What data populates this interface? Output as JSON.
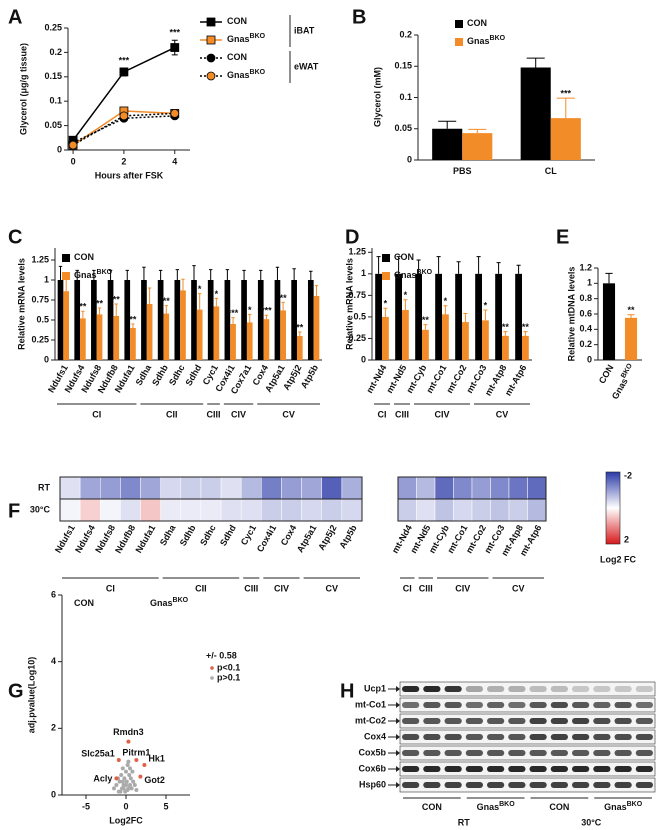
{
  "chart_data": [
    {
      "type": "line",
      "label": "A",
      "x_label": "Hours after FSK",
      "y_label": "Glycerol (μg/g tissue)",
      "x": [
        0,
        2,
        4
      ],
      "xlim": [
        -0.2,
        4.6
      ],
      "xticks": [
        0,
        2,
        4
      ],
      "ylim": [
        0,
        0.25
      ],
      "yticks": [
        0,
        0.05,
        0.1,
        0.15,
        0.2,
        0.25
      ],
      "legend_groups": [
        "iBAT",
        "eWAT"
      ],
      "series": [
        {
          "name": "CON",
          "color": "#000000",
          "line_color": "#000000",
          "marker": "square",
          "dashed": false,
          "values": [
            0.02,
            0.16,
            0.21
          ],
          "errors": [
            0.005,
            0.008,
            0.015
          ],
          "significance": [
            null,
            "***",
            "***"
          ]
        },
        {
          "name": "Gnas",
          "superscript": "BKO",
          "color": "#f28c28",
          "line_color": "#f28c28",
          "marker": "square",
          "dashed": false,
          "values": [
            0.01,
            0.08,
            0.075
          ],
          "errors": [
            0.003,
            0.005,
            0.005
          ]
        },
        {
          "name": "CON",
          "color": "#000000",
          "line_color": "#000000",
          "marker": "circle",
          "dashed": true,
          "values": [
            0.015,
            0.065,
            0.07
          ],
          "errors": [
            0.003,
            0.004,
            0.004
          ]
        },
        {
          "name": "Gnas",
          "superscript": "BKO",
          "color": "#f28c28",
          "line_color": "#000000",
          "marker": "circle",
          "dashed": true,
          "values": [
            0.01,
            0.07,
            0.075
          ],
          "errors": [
            0.003,
            0.004,
            0.004
          ]
        }
      ]
    },
    {
      "type": "bar",
      "label": "B",
      "y_label": "Glycerol (mM)",
      "categories": [
        "PBS",
        "CL"
      ],
      "ylim": [
        0,
        0.2
      ],
      "yticks": [
        0,
        0.05,
        0.1,
        0.15,
        0.2
      ],
      "series": [
        {
          "name": "CON",
          "color": "#000000",
          "values": [
            0.05,
            0.148
          ],
          "errors": [
            0.012,
            0.015
          ]
        },
        {
          "name": "Gnas",
          "superscript": "BKO",
          "color": "#f28c28",
          "values": [
            0.043,
            0.067
          ],
          "errors": [
            0.006,
            0.032
          ],
          "significance": [
            null,
            "***"
          ]
        }
      ]
    },
    {
      "type": "bar",
      "label": "C",
      "y_label": "Relative mRNA levels",
      "categories": [
        "Ndufs1",
        "Ndufs4",
        "Ndufs8",
        "Ndufb8",
        "Ndufa1",
        "Sdha",
        "Sdhb",
        "Sdhc",
        "Sdhd",
        "Cyc1",
        "Cox4i1",
        "Cox7a1",
        "Cox4",
        "Atp5a1",
        "Atp5j2",
        "Atp5b"
      ],
      "groups": [
        {
          "name": "CI",
          "count": 5
        },
        {
          "name": "CII",
          "count": 4
        },
        {
          "name": "CIII",
          "count": 1
        },
        {
          "name": "CIV",
          "count": 2
        },
        {
          "name": "CV",
          "count": 4
        }
      ],
      "ylim": [
        0,
        1.4
      ],
      "yticks": [
        0,
        0.25,
        0.5,
        0.75,
        1,
        1.25
      ],
      "series": [
        {
          "name": "CON",
          "color": "#000000",
          "values": [
            1,
            1,
            1,
            1,
            1,
            1,
            1,
            1,
            1,
            1,
            1,
            1,
            1,
            1,
            1,
            1
          ],
          "errors": [
            0.17,
            0.12,
            0.12,
            0.12,
            0.12,
            0.16,
            0.12,
            0.13,
            0.18,
            0.13,
            0.13,
            0.12,
            0.12,
            0.16,
            0.14,
            0.11
          ]
        },
        {
          "name": "Gnas",
          "superscript": "BKO",
          "color": "#f28c28",
          "values": [
            0.86,
            0.52,
            0.57,
            0.55,
            0.4,
            0.7,
            0.58,
            0.87,
            0.63,
            0.67,
            0.45,
            0.47,
            0.51,
            0.62,
            0.3,
            0.8
          ],
          "errors": [
            0.2,
            0.09,
            0.08,
            0.15,
            0.05,
            0.2,
            0.1,
            0.14,
            0.2,
            0.1,
            0.08,
            0.1,
            0.05,
            0.1,
            0.05,
            0.13
          ],
          "significance": [
            null,
            "**",
            "**",
            "**",
            "**",
            null,
            "**",
            null,
            "*",
            "*",
            "***",
            "*",
            "***",
            "**",
            "**",
            null
          ]
        }
      ]
    },
    {
      "type": "bar",
      "label": "D",
      "y_label": "Relative mRNA levels",
      "categories": [
        "mt-Nd4",
        "mt-Nd5",
        "mt-Cyb",
        "mt-Co1",
        "mt-Co2",
        "mt-Co3",
        "mt-Atp8",
        "mt-Atp6"
      ],
      "groups": [
        {
          "name": "CI",
          "count": 1
        },
        {
          "name": "CIII",
          "count": 1
        },
        {
          "name": "CIV",
          "count": 3
        },
        {
          "name": "CV",
          "count": 3
        }
      ],
      "ylim": [
        0,
        1.3
      ],
      "yticks": [
        0,
        0.25,
        0.5,
        0.75,
        1,
        1.25
      ],
      "series": [
        {
          "name": "CON",
          "color": "#000000",
          "values": [
            1,
            1,
            1,
            1,
            1,
            1,
            1,
            1
          ],
          "errors": [
            0.2,
            0.2,
            0.16,
            0.2,
            0.14,
            0.2,
            0.13,
            0.1
          ]
        },
        {
          "name": "Gnas",
          "superscript": "BKO",
          "color": "#f28c28",
          "values": [
            0.5,
            0.58,
            0.35,
            0.53,
            0.44,
            0.46,
            0.28,
            0.28
          ],
          "errors": [
            0.1,
            0.12,
            0.06,
            0.1,
            0.1,
            0.12,
            0.05,
            0.05
          ],
          "significance": [
            "*",
            "*",
            "**",
            "*",
            null,
            "*",
            "**",
            "**"
          ]
        }
      ]
    },
    {
      "type": "bar",
      "label": "E",
      "y_label": "Relative mtDNA levels",
      "categories": [
        "CON",
        "Gnas"
      ],
      "category_superscripts": [
        null,
        "BKO"
      ],
      "colors": [
        "#000000",
        "#f28c28"
      ],
      "values": [
        1,
        0.55
      ],
      "errors": [
        0.13,
        0.04
      ],
      "significance": [
        null,
        "**"
      ],
      "ylim": [
        0,
        1.2
      ],
      "yticks": [
        0,
        0.2,
        0.4,
        0.6,
        0.8,
        1,
        1.2
      ]
    },
    {
      "type": "heatmap",
      "label": "F",
      "rows": [
        "RT",
        "30°C"
      ],
      "clim": [
        -2,
        2
      ],
      "cticks": [
        -2,
        2
      ],
      "colorbar_label": "Log2 FC",
      "cmap": [
        "#2b3aa8",
        "#ffffff",
        "#d7191c"
      ],
      "blocks": [
        {
          "categories": [
            "Ndufs1",
            "Ndufs4",
            "Ndufs8",
            "Ndufb8",
            "Ndufa1",
            "Sdha",
            "Sdhb",
            "Sdhc",
            "Sdhd",
            "Cyc1",
            "Cox4i1",
            "Cox4",
            "Atp5a1",
            "Atp5j2",
            "Atp5b"
          ],
          "groups": [
            {
              "name": "CI",
              "count": 5
            },
            {
              "name": "CII",
              "count": 4
            },
            {
              "name": "CIII",
              "count": 1
            },
            {
              "name": "CIV",
              "count": 2
            },
            {
              "name": "CV",
              "count": 3
            }
          ],
          "values": [
            [
              -0.3,
              -0.9,
              -1.0,
              -1.2,
              -0.9,
              -0.4,
              -0.5,
              -0.5,
              -0.3,
              -0.7,
              -1.3,
              -1.0,
              -0.9,
              -1.6,
              -0.8
            ],
            [
              -0.1,
              0.4,
              -0.1,
              -0.3,
              0.5,
              -0.2,
              -0.2,
              -0.2,
              -0.3,
              -0.3,
              -0.5,
              -0.5,
              -0.4,
              -0.5,
              -0.4
            ]
          ]
        },
        {
          "categories": [
            "mt-Nd4",
            "mt-Nd5",
            "mt-Cyb",
            "mt-Co1",
            "mt-Co2",
            "mt-Co3",
            "mt-Atp8",
            "mt-Atp6"
          ],
          "groups": [
            {
              "name": "CI",
              "count": 1
            },
            {
              "name": "CIII",
              "count": 1
            },
            {
              "name": "CIV",
              "count": 3
            },
            {
              "name": "CV",
              "count": 3
            }
          ],
          "values": [
            [
              -1.0,
              -0.7,
              -1.5,
              -1.2,
              -1.0,
              -1.2,
              -1.4,
              -1.5
            ],
            [
              -0.5,
              -0.3,
              -0.6,
              -0.4,
              -0.5,
              -0.6,
              -0.5,
              -0.7
            ]
          ]
        }
      ]
    },
    {
      "type": "scatter",
      "label": "G",
      "x_label": "Log2FC",
      "y_label": "adj.pvalue(Log10)",
      "xlim": [
        -8,
        8
      ],
      "xticks": [
        -5,
        0,
        5
      ],
      "ylim": [
        0,
        6
      ],
      "yticks": [
        0,
        2,
        4,
        6
      ],
      "corner_labels": [
        {
          "text": "CON"
        },
        {
          "text": "Gnas",
          "superscript": "BKO"
        }
      ],
      "legend_title": "+/- 0.58",
      "series": [
        {
          "name": "p<0.1",
          "color": "#e0604a",
          "x": [
            0.3,
            -0.9,
            1.3,
            2.3,
            -1.2,
            1.8
          ],
          "values": [
            1.6,
            1.05,
            1.05,
            0.9,
            0.5,
            0.55
          ],
          "labels": [
            "Rmdn3",
            "Slc25a1",
            "Pitrm1",
            "Hk1",
            "Acly",
            "Got2"
          ]
        },
        {
          "name": "p>0.1",
          "color": "#aaaaaa",
          "x": [
            -1.5,
            -1.2,
            -1,
            -0.8,
            -0.6,
            -0.5,
            -0.4,
            -0.3,
            -0.2,
            -0.1,
            0,
            0.1,
            0.2,
            0.3,
            0.4,
            0.5,
            0.6,
            0.7,
            0.9,
            1.1,
            1.3,
            -0.7,
            -0.3,
            0.2,
            0.5,
            -0.9,
            0.8,
            0,
            -0.4,
            0.3
          ],
          "values": [
            0.2,
            0.3,
            0.5,
            0.4,
            0.6,
            0.2,
            0.8,
            0.3,
            0.5,
            0.1,
            0.7,
            0.4,
            0.9,
            0.2,
            0.6,
            0.3,
            0.5,
            0.2,
            0.4,
            0.3,
            0.15,
            0.1,
            0.2,
            0.15,
            0.8,
            0.1,
            0.7,
            0.3,
            0.4,
            1.0
          ]
        }
      ]
    }
  ],
  "blot": {
    "label": "H",
    "proteins": [
      "Ucp1",
      "mt-Co1",
      "mt-Co2",
      "Cox4",
      "Cox5b",
      "Cox6b",
      "Hsp60"
    ],
    "groups": [
      {
        "name": "CON"
      },
      {
        "name": "Gnas",
        "superscript": "BKO"
      },
      {
        "name": "CON"
      },
      {
        "name": "Gnas",
        "superscript": "BKO"
      }
    ],
    "conditions": [
      "RT",
      "30°C"
    ]
  }
}
